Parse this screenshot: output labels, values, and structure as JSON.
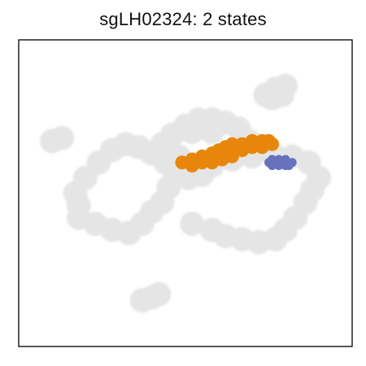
{
  "chart_data": {
    "type": "scatter",
    "title": "sgLH02324: 2 states",
    "xlabel": "",
    "ylabel": "",
    "axes_ticks": "none",
    "grid": false,
    "legend": "none",
    "background": {
      "name": "all cells",
      "color": "#e5e5e5",
      "clusters": [
        {
          "name": "upper-right loop",
          "points": [
            [
              52,
              40
            ],
            [
              58,
              38
            ],
            [
              62,
              36
            ],
            [
              67,
              35
            ],
            [
              72,
              34
            ],
            [
              77,
              35
            ],
            [
              80,
              38
            ],
            [
              83,
              42
            ],
            [
              86,
              47
            ],
            [
              88,
              51
            ],
            [
              90,
              55
            ],
            [
              87,
              60
            ],
            [
              82,
              62
            ],
            [
              76,
              63
            ],
            [
              70,
              62
            ],
            [
              64,
              61
            ],
            [
              58,
              59
            ],
            [
              54,
              57
            ]
          ]
        },
        {
          "name": "small right blob",
          "points": [
            [
              74,
              82
            ],
            [
              77,
              84
            ],
            [
              80,
              85
            ],
            [
              79,
              82
            ],
            [
              76,
              81
            ]
          ]
        },
        {
          "name": "left central mass",
          "points": [
            [
              18,
              42
            ],
            [
              23,
              40
            ],
            [
              28,
              38
            ],
            [
              33,
              37
            ],
            [
              37,
              40
            ],
            [
              40,
              44
            ],
            [
              43,
              47
            ],
            [
              45,
              52
            ],
            [
              47,
              55
            ],
            [
              44,
              60
            ],
            [
              40,
              63
            ],
            [
              36,
              65
            ],
            [
              32,
              66
            ],
            [
              28,
              64
            ],
            [
              24,
              60
            ],
            [
              20,
              55
            ],
            [
              17,
              50
            ],
            [
              18,
              46
            ]
          ]
        },
        {
          "name": "lower arm",
          "points": [
            [
              40,
              63
            ],
            [
              43,
              66
            ],
            [
              46,
              69
            ],
            [
              50,
              72
            ],
            [
              54,
              74
            ],
            [
              58,
              74
            ],
            [
              62,
              73
            ],
            [
              66,
              71
            ],
            [
              69,
              67
            ],
            [
              58,
              70
            ],
            [
              52,
              70
            ]
          ]
        },
        {
          "name": "lower branch",
          "points": [
            [
              48,
              62
            ],
            [
              52,
              58
            ],
            [
              55,
              56
            ],
            [
              51,
              55
            ]
          ]
        },
        {
          "name": "left fragment",
          "points": [
            [
              10,
              67
            ],
            [
              13,
              68
            ]
          ]
        },
        {
          "name": "bottom fragment",
          "points": [
            [
              37,
              15
            ],
            [
              40,
              16
            ],
            [
              42,
              17
            ]
          ]
        }
      ]
    },
    "series": [
      {
        "color": "#e8860c",
        "points": [
          [
            49,
            60
          ],
          [
            52,
            61
          ],
          [
            55,
            62
          ],
          [
            58,
            63
          ],
          [
            60,
            64
          ],
          [
            62,
            65
          ],
          [
            64,
            66
          ],
          [
            67,
            66
          ],
          [
            70,
            67
          ],
          [
            73,
            67
          ],
          [
            75,
            67
          ],
          [
            76,
            66
          ],
          [
            73,
            65
          ],
          [
            70,
            65
          ],
          [
            67,
            64
          ],
          [
            64,
            62
          ],
          [
            61,
            61
          ],
          [
            58,
            60
          ],
          [
            55,
            60
          ],
          [
            52,
            59
          ]
        ]
      },
      {
        "color": "#6672bb",
        "points": [
          [
            75,
            60
          ],
          [
            77,
            60
          ],
          [
            79,
            60
          ],
          [
            81,
            60
          ],
          [
            82,
            60
          ],
          [
            76,
            59
          ],
          [
            78,
            59
          ],
          [
            80,
            59
          ],
          [
            81,
            59
          ],
          [
            76,
            61
          ],
          [
            78,
            61
          ],
          [
            80,
            61
          ]
        ]
      }
    ]
  }
}
